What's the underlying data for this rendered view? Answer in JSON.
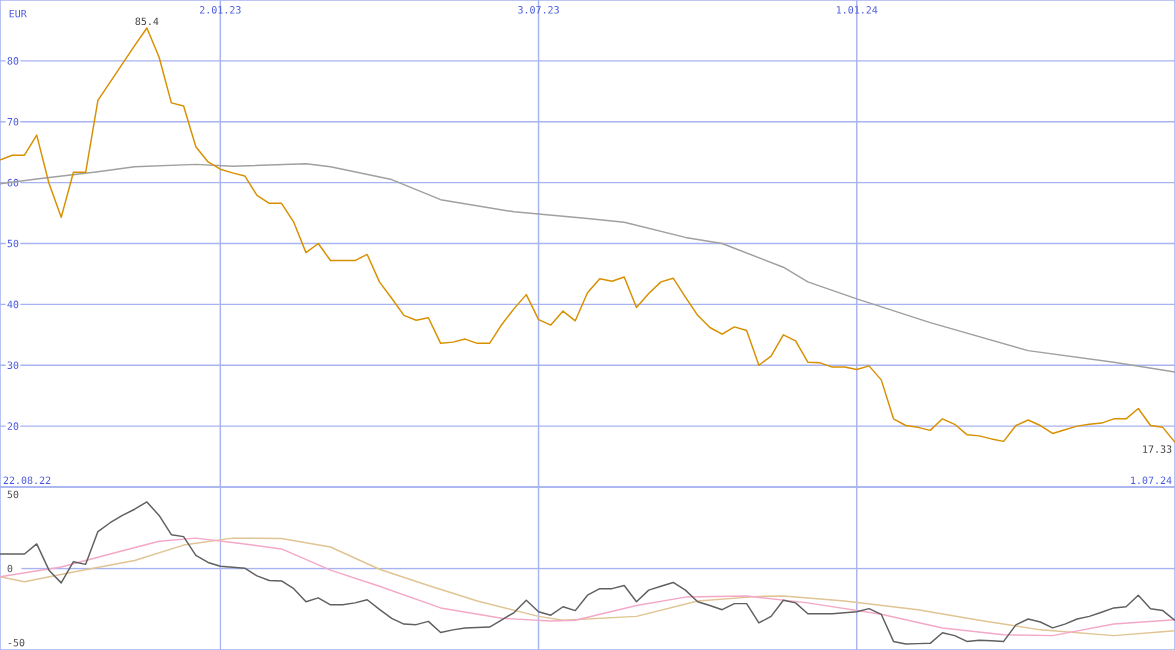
{
  "chart_data": [
    {
      "type": "line",
      "ylabel": "EUR",
      "xlim": [
        "2022-08-29",
        "2024-07-01"
      ],
      "ylim": [
        10,
        90
      ],
      "xticks": [
        {
          "value": "2023-01-02",
          "label": "2.01.23"
        },
        {
          "value": "2023-07-03",
          "label": "3.07.23"
        },
        {
          "value": "2024-01-01",
          "label": "1.01.24"
        }
      ],
      "yticks": [
        20,
        30,
        40,
        50,
        60,
        70,
        80
      ],
      "grid": true,
      "x": [
        "2022-08-29",
        "2022-09-05",
        "2022-09-12",
        "2022-09-19",
        "2022-09-26",
        "2022-10-03",
        "2022-10-10",
        "2022-10-17",
        "2022-10-24",
        "2022-10-31",
        "2022-11-07",
        "2022-11-14",
        "2022-11-21",
        "2022-11-28",
        "2022-12-05",
        "2022-12-12",
        "2022-12-19",
        "2022-12-26",
        "2023-01-02",
        "2023-01-09",
        "2023-01-16",
        "2023-01-23",
        "2023-01-30",
        "2023-02-06",
        "2023-02-13",
        "2023-02-20",
        "2023-02-27",
        "2023-03-06",
        "2023-03-13",
        "2023-03-20",
        "2023-03-27",
        "2023-04-03",
        "2023-04-10",
        "2023-04-17",
        "2023-04-24",
        "2023-05-01",
        "2023-05-08",
        "2023-05-15",
        "2023-05-22",
        "2023-05-29",
        "2023-06-05",
        "2023-06-12",
        "2023-06-19",
        "2023-06-26",
        "2023-07-03",
        "2023-07-10",
        "2023-07-17",
        "2023-07-24",
        "2023-07-31",
        "2023-08-07",
        "2023-08-14",
        "2023-08-21",
        "2023-08-28",
        "2023-09-04",
        "2023-09-11",
        "2023-09-18",
        "2023-09-25",
        "2023-10-02",
        "2023-10-09",
        "2023-10-16",
        "2023-10-23",
        "2023-10-30",
        "2023-11-06",
        "2023-11-13",
        "2023-11-20",
        "2023-11-27",
        "2023-12-04",
        "2023-12-11",
        "2023-12-18",
        "2023-12-25",
        "2024-01-01",
        "2024-01-08",
        "2024-01-15",
        "2024-01-22",
        "2024-01-29",
        "2024-02-05",
        "2024-02-12",
        "2024-02-19",
        "2024-02-26",
        "2024-03-04",
        "2024-03-11",
        "2024-03-18",
        "2024-03-25",
        "2024-04-01",
        "2024-04-08",
        "2024-04-15",
        "2024-04-22",
        "2024-04-29",
        "2024-05-06",
        "2024-05-13",
        "2024-05-20",
        "2024-05-27",
        "2024-06-03",
        "2024-06-10",
        "2024-06-17",
        "2024-06-24",
        "2024-07-01"
      ],
      "series": [
        {
          "color": "#a0a0a0",
          "x": [
            "2022-08-29",
            "2022-09-19",
            "2022-10-24",
            "2022-11-14",
            "2022-12-19",
            "2023-01-09",
            "2023-02-20",
            "2023-03-06",
            "2023-04-10",
            "2023-05-08",
            "2023-06-19",
            "2023-07-31",
            "2023-08-21",
            "2023-09-25",
            "2023-10-16",
            "2023-11-20",
            "2023-12-04",
            "2024-01-01",
            "2024-02-12",
            "2024-04-08",
            "2024-05-27",
            "2024-07-01"
          ],
          "values": [
            59.8,
            60.6,
            61.8,
            62.6,
            63.0,
            62.7,
            63.1,
            62.6,
            60.5,
            57.2,
            55.2,
            54.1,
            53.5,
            51.0,
            50.0,
            46.1,
            43.7,
            40.9,
            37.0,
            32.4,
            30.5,
            28.9
          ]
        },
        {
          "color": "#d89000",
          "values": [
            63.7,
            64.5,
            64.5,
            67.8,
            59.9,
            54.3,
            61.7,
            61.7,
            73.5,
            76.5,
            79.5,
            82.5,
            85.4,
            80.6,
            73.1,
            72.6,
            65.9,
            63.4,
            62.2,
            61.6,
            61.1,
            57.9,
            56.6,
            56.6,
            53.5,
            48.5,
            50.0,
            47.2,
            47.2,
            47.2,
            48.2,
            43.7,
            41.0,
            38.2,
            37.4,
            37.8,
            33.6,
            33.8,
            34.3,
            33.6,
            33.6,
            36.7,
            39.3,
            41.6,
            37.5,
            36.6,
            38.9,
            37.3,
            41.9,
            44.2,
            43.8,
            44.5,
            39.5,
            41.8,
            43.7,
            44.3,
            41.2,
            38.2,
            36.2,
            35.1,
            36.3,
            35.7,
            30.0,
            31.5,
            35.0,
            34.0,
            30.5,
            30.4,
            29.7,
            29.7,
            29.3,
            29.9,
            27.6,
            21.2,
            20.1,
            19.8,
            19.3,
            21.2,
            20.3,
            18.6,
            18.4,
            17.9,
            17.5,
            20.1,
            21.0,
            20.1,
            18.8,
            19.4,
            20.0,
            20.3,
            20.5,
            21.2,
            21.2,
            22.9,
            20.1,
            19.8,
            17.33
          ]
        }
      ],
      "annotations": [
        {
          "text": "85.4",
          "x": "2022-11-21",
          "y": 85.4
        },
        {
          "text": "17.33",
          "x": "2024-07-01",
          "y": 17.33
        },
        "22.08.22",
        "1.07.24"
      ]
    },
    {
      "type": "line",
      "xlim": [
        "2022-08-29",
        "2024-07-01"
      ],
      "ylim": [
        -55,
        55
      ],
      "xticks": [
        {
          "value": "2023-01-02",
          "label": null
        },
        {
          "value": "2023-07-03",
          "label": null
        },
        {
          "value": "2024-01-01",
          "label": null
        }
      ],
      "yticks": [
        -50,
        0,
        50
      ],
      "grid": "x",
      "tick_labels": "y",
      "ref_lines": [
        {
          "axis": "y",
          "value": 0,
          "color": "#a8b4f0"
        }
      ],
      "x": [
        "2022-08-29",
        "2022-09-05",
        "2022-09-12",
        "2022-09-19",
        "2022-09-26",
        "2022-10-03",
        "2022-10-10",
        "2022-10-17",
        "2022-10-24",
        "2022-10-31",
        "2022-11-07",
        "2022-11-14",
        "2022-11-21",
        "2022-11-28",
        "2022-12-05",
        "2022-12-12",
        "2022-12-19",
        "2022-12-26",
        "2023-01-02",
        "2023-01-09",
        "2023-01-16",
        "2023-01-23",
        "2023-01-30",
        "2023-02-06",
        "2023-02-13",
        "2023-02-20",
        "2023-02-27",
        "2023-03-06",
        "2023-03-13",
        "2023-03-20",
        "2023-03-27",
        "2023-04-03",
        "2023-04-10",
        "2023-04-17",
        "2023-04-24",
        "2023-05-01",
        "2023-05-08",
        "2023-05-15",
        "2023-05-22",
        "2023-05-29",
        "2023-06-05",
        "2023-06-12",
        "2023-06-19",
        "2023-06-26",
        "2023-07-03",
        "2023-07-10",
        "2023-07-17",
        "2023-07-24",
        "2023-07-31",
        "2023-08-07",
        "2023-08-14",
        "2023-08-21",
        "2023-08-28",
        "2023-09-04",
        "2023-09-11",
        "2023-09-18",
        "2023-09-25",
        "2023-10-02",
        "2023-10-09",
        "2023-10-16",
        "2023-10-23",
        "2023-10-30",
        "2023-11-06",
        "2023-11-13",
        "2023-11-20",
        "2023-11-27",
        "2023-12-04",
        "2023-12-11",
        "2023-12-18",
        "2023-12-25",
        "2024-01-01",
        "2024-01-08",
        "2024-01-15",
        "2024-01-22",
        "2024-01-29",
        "2024-02-05",
        "2024-02-12",
        "2024-02-19",
        "2024-02-26",
        "2024-03-04",
        "2024-03-11",
        "2024-03-18",
        "2024-03-25",
        "2024-04-01",
        "2024-04-08",
        "2024-04-15",
        "2024-04-22",
        "2024-04-29",
        "2024-05-06",
        "2024-05-13",
        "2024-05-20",
        "2024-05-27",
        "2024-06-03",
        "2024-06-10",
        "2024-06-17",
        "2024-06-24",
        "2024-07-01"
      ],
      "series": [
        {
          "color": "#e0c494",
          "x": [
            "2022-08-29",
            "2022-09-12",
            "2022-10-10",
            "2022-11-14",
            "2022-12-12",
            "2023-01-09",
            "2023-02-06",
            "2023-03-06",
            "2023-04-03",
            "2023-05-01",
            "2023-05-29",
            "2023-07-03",
            "2023-07-17",
            "2023-08-28",
            "2023-10-02",
            "2023-11-06",
            "2023-11-20",
            "2023-12-25",
            "2024-02-05",
            "2024-03-11",
            "2024-04-15",
            "2024-05-27",
            "2024-07-01"
          ],
          "values": [
            -5.5,
            -8.9,
            -2.4,
            5.4,
            15.8,
            20.5,
            20.2,
            14.5,
            -0.5,
            -11.5,
            -21.9,
            -32.3,
            -34.9,
            -32.3,
            -21.9,
            -18.8,
            -18.5,
            -21.9,
            -27.8,
            -34.9,
            -41.4,
            -45.3,
            -42.0
          ]
        },
        {
          "color": "#f4a8c8",
          "x": [
            "2022-08-29",
            "2022-10-03",
            "2022-10-31",
            "2022-11-28",
            "2022-12-19",
            "2023-01-09",
            "2023-02-06",
            "2023-03-06",
            "2023-04-03",
            "2023-05-08",
            "2023-06-12",
            "2023-07-10",
            "2023-07-24",
            "2023-08-28",
            "2023-09-25",
            "2023-10-30",
            "2023-12-04",
            "2024-01-15",
            "2024-02-19",
            "2024-03-25",
            "2024-04-22",
            "2024-05-27",
            "2024-07-01"
          ],
          "values": [
            -5.5,
            1.0,
            9.8,
            18.4,
            20.5,
            17.6,
            13.2,
            -1.1,
            -12.0,
            -26.6,
            -33.6,
            -35.4,
            -34.9,
            -25.0,
            -19.3,
            -18.5,
            -23.2,
            -30.9,
            -40.1,
            -44.7,
            -45.3,
            -37.5,
            -34.6
          ]
        },
        {
          "color": "#606060",
          "values": [
            9.8,
            9.8,
            9.8,
            16.6,
            -1.1,
            -9.7,
            4.6,
            2.8,
            24.9,
            30.9,
            35.8,
            40.0,
            44.9,
            35.8,
            22.8,
            21.5,
            8.8,
            4.1,
            1.5,
            0.8,
            0.2,
            -5.0,
            -8.1,
            -8.4,
            -13.6,
            -22.4,
            -19.8,
            -24.5,
            -24.5,
            -23.2,
            -21.1,
            -27.6,
            -33.6,
            -37.5,
            -37.9,
            -35.7,
            -43.2,
            -41.4,
            -40.1,
            -39.8,
            -39.5,
            -34.6,
            -29.7,
            -21.4,
            -29.2,
            -31.5,
            -25.8,
            -28.4,
            -18.0,
            -13.6,
            -13.6,
            -11.5,
            -22.4,
            -14.6,
            -12.0,
            -9.4,
            -14.6,
            -22.4,
            -25.0,
            -27.8,
            -23.7,
            -23.7,
            -36.7,
            -32.3,
            -21.4,
            -23.2,
            -30.5,
            -30.5,
            -30.5,
            -29.8,
            -29.2,
            -27.1,
            -30.9,
            -49.2,
            -51.0,
            -50.7,
            -50.5,
            -43.4,
            -45.3,
            -49.2,
            -48.4,
            -48.8,
            -49.2,
            -38.0,
            -34.1,
            -36.1,
            -40.1,
            -37.5,
            -34.1,
            -32.3,
            -29.5,
            -26.6,
            -25.8,
            -18.0,
            -27.1,
            -28.4,
            -35.0
          ]
        }
      ]
    }
  ]
}
